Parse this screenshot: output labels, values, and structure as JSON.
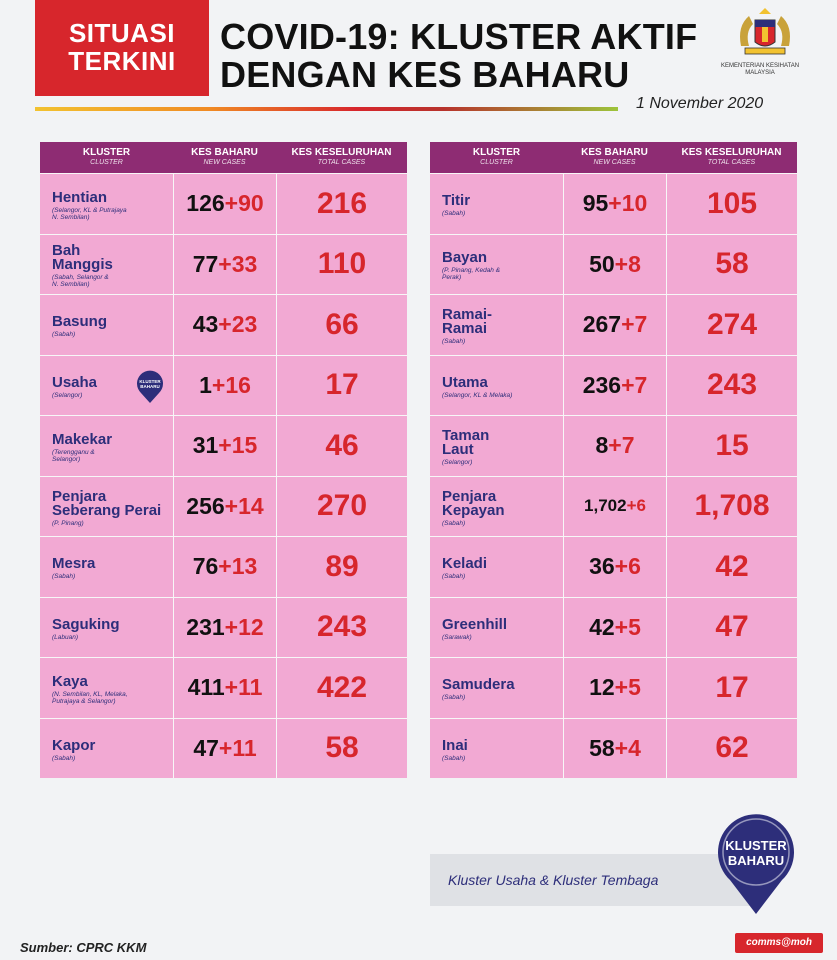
{
  "badge": {
    "line1": "SITUASI",
    "line2": "TERKINI"
  },
  "title": {
    "line1": "COVID-19: KLUSTER AKTIF",
    "line2": "DENGAN KES BAHARU"
  },
  "ministry": {
    "line1": "KEMENTERIAN KESIHATAN",
    "line2": "MALAYSIA"
  },
  "date": "1 November 2020",
  "headers": {
    "cluster": "KLUSTER",
    "cluster_en": "CLUSTER",
    "new": "KES BAHARU",
    "new_en": "NEW CASES",
    "total": "KES KESELURUHAN",
    "total_en": "TOTAL CASES"
  },
  "left_rows": [
    {
      "name": "Hentian",
      "state": "(Selangor, KL & Putrajaya\nN. Sembilan)",
      "base": "126",
      "add": "+90",
      "total": "216"
    },
    {
      "name": "Bah\nManggis",
      "state": "(Sabah, Selangor &\nN. Sembilan)",
      "base": "77",
      "add": "+33",
      "total": "110"
    },
    {
      "name": "Basung",
      "state": "(Sabah)",
      "base": "43",
      "add": "+23",
      "total": "66"
    },
    {
      "name": "Usaha",
      "state": "(Selangor)",
      "base": "1",
      "add": "+16",
      "total": "17"
    },
    {
      "name": "Makekar",
      "state": "(Terengganu &\nSelangor)",
      "base": "31",
      "add": "+15",
      "total": "46"
    },
    {
      "name": "Penjara\nSeberang Perai",
      "state": "(P. Pinang)",
      "base": "256",
      "add": "+14",
      "total": "270"
    },
    {
      "name": "Mesra",
      "state": "(Sabah)",
      "base": "76",
      "add": "+13",
      "total": "89"
    },
    {
      "name": "Saguking",
      "state": "(Labuan)",
      "base": "231",
      "add": "+12",
      "total": "243"
    },
    {
      "name": "Kaya",
      "state": "(N. Sembilan, KL, Melaka,\nPutrajaya & Selangor)",
      "base": "411",
      "add": "+11",
      "total": "422"
    },
    {
      "name": "Kapor",
      "state": "(Sabah)",
      "base": "47",
      "add": "+11",
      "total": "58"
    }
  ],
  "right_rows": [
    {
      "name": "Titir",
      "state": "(Sabah)",
      "base": "95",
      "add": "+10",
      "total": "105"
    },
    {
      "name": "Bayan",
      "state": "(P. Pinang, Kedah &\nPerak)",
      "base": "50",
      "add": "+8",
      "total": "58"
    },
    {
      "name": "Ramai-\nRamai",
      "state": "(Sabah)",
      "base": "267",
      "add": "+7",
      "total": "274"
    },
    {
      "name": "Utama",
      "state": "(Selangor, KL & Melaka)",
      "base": "236",
      "add": "+7",
      "total": "243"
    },
    {
      "name": "Taman\nLaut",
      "state": "(Selangor)",
      "base": "8",
      "add": "+7",
      "total": "15"
    },
    {
      "name": "Penjara\nKepayan",
      "state": "(Sabah)",
      "base": "1,702",
      "add": "+6",
      "total": "1,708"
    },
    {
      "name": "Keladi",
      "state": "(Sabah)",
      "base": "36",
      "add": "+6",
      "total": "42"
    },
    {
      "name": "Greenhill",
      "state": "(Sarawak)",
      "base": "42",
      "add": "+5",
      "total": "47"
    },
    {
      "name": "Samudera",
      "state": "(Sabah)",
      "base": "12",
      "add": "+5",
      "total": "17"
    },
    {
      "name": "Inai",
      "state": "(Sabah)",
      "base": "58",
      "add": "+4",
      "total": "62"
    }
  ],
  "small_pin": {
    "line1": "KLUSTER",
    "line2": "BAHARU"
  },
  "big_pin": {
    "line1": "KLUSTER",
    "line2": "BAHARU"
  },
  "note": "Kluster Usaha & Kluster Tembaga",
  "source": "Sumber: CPRC KKM",
  "credit": "comms@moh",
  "colors": {
    "red": "#d7262c",
    "purple": "#8e2c73",
    "pink": "#f2a9d3",
    "navy": "#2d2e7a"
  }
}
